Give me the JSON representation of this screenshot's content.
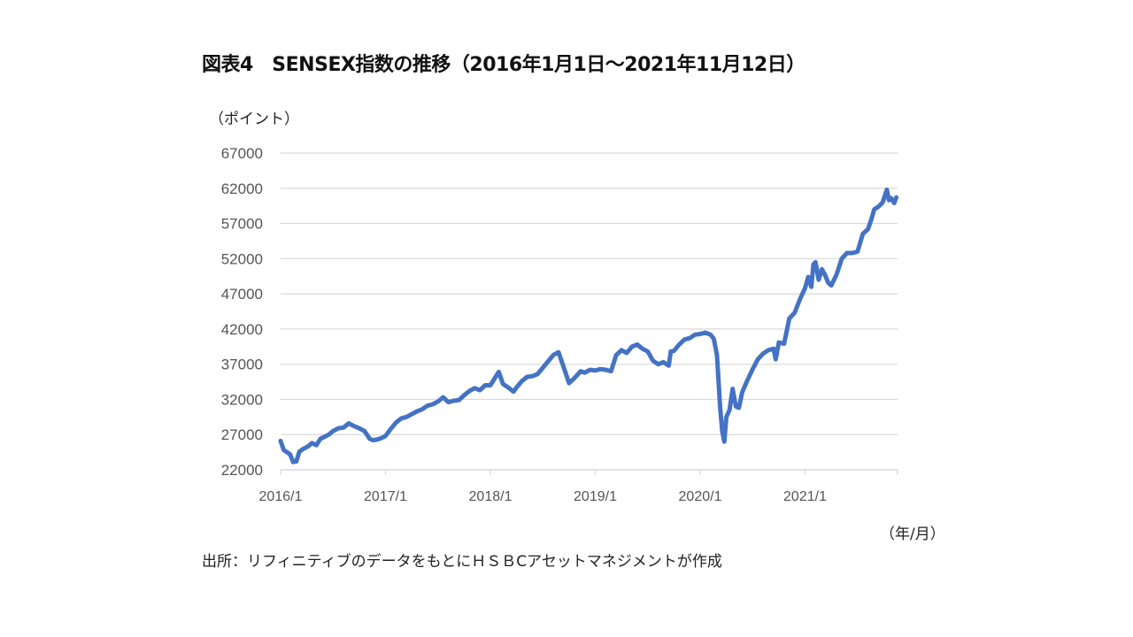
{
  "figure": {
    "title": "図表4　SENSEX指数の推移（2016年1月1日～2021年11月12日）",
    "y_unit": "（ポイント）",
    "x_unit": "（年/月）",
    "source": "出所：リフィニティブのデータをもとにＨＳＢCアセットマネジメントが作成"
  },
  "colors": {
    "line": "#4472C4",
    "grid": "#D9D9D9",
    "tick_text": "#595959"
  },
  "chart_data": {
    "type": "line",
    "title": "SENSEX指数の推移（2016年1月1日～2021年11月12日）",
    "xlabel": "（年/月）",
    "ylabel": "（ポイント）",
    "ylim": [
      22000,
      67000
    ],
    "yticks": [
      22000,
      27000,
      32000,
      37000,
      42000,
      47000,
      52000,
      57000,
      62000,
      67000
    ],
    "xticks": [
      "2016/1",
      "2017/1",
      "2018/1",
      "2019/1",
      "2020/1",
      "2021/1"
    ],
    "xlim": [
      2016.0,
      2021.87
    ],
    "grid": true,
    "legend": null,
    "series": [
      {
        "name": "SENSEX",
        "x": [
          2016.0,
          2016.03,
          2016.06,
          2016.09,
          2016.12,
          2016.15,
          2016.18,
          2016.22,
          2016.26,
          2016.3,
          2016.34,
          2016.38,
          2016.42,
          2016.46,
          2016.5,
          2016.55,
          2016.6,
          2016.65,
          2016.7,
          2016.75,
          2016.8,
          2016.85,
          2016.88,
          2016.92,
          2016.96,
          2017.0,
          2017.05,
          2017.1,
          2017.15,
          2017.2,
          2017.25,
          2017.3,
          2017.35,
          2017.4,
          2017.45,
          2017.5,
          2017.55,
          2017.6,
          2017.65,
          2017.7,
          2017.75,
          2017.8,
          2017.85,
          2017.9,
          2017.95,
          2018.0,
          2018.05,
          2018.08,
          2018.12,
          2018.17,
          2018.22,
          2018.25,
          2018.3,
          2018.35,
          2018.4,
          2018.45,
          2018.5,
          2018.55,
          2018.6,
          2018.65,
          2018.7,
          2018.75,
          2018.8,
          2018.83,
          2018.86,
          2018.9,
          2018.95,
          2019.0,
          2019.05,
          2019.1,
          2019.15,
          2019.2,
          2019.25,
          2019.3,
          2019.35,
          2019.4,
          2019.45,
          2019.5,
          2019.55,
          2019.6,
          2019.65,
          2019.7,
          2019.72,
          2019.75,
          2019.8,
          2019.85,
          2019.9,
          2019.95,
          2020.0,
          2020.05,
          2020.1,
          2020.13,
          2020.16,
          2020.19,
          2020.21,
          2020.23,
          2020.25,
          2020.28,
          2020.31,
          2020.34,
          2020.37,
          2020.4,
          2020.45,
          2020.5,
          2020.55,
          2020.6,
          2020.65,
          2020.7,
          2020.72,
          2020.75,
          2020.8,
          2020.85,
          2020.9,
          2020.95,
          2021.0,
          2021.03,
          2021.06,
          2021.08,
          2021.1,
          2021.13,
          2021.16,
          2021.19,
          2021.22,
          2021.25,
          2021.3,
          2021.35,
          2021.4,
          2021.45,
          2021.5,
          2021.55,
          2021.6,
          2021.63,
          2021.66,
          2021.7,
          2021.74,
          2021.78,
          2021.8,
          2021.82,
          2021.85,
          2021.87
        ],
        "values": [
          26100,
          24800,
          24500,
          24200,
          23100,
          23200,
          24600,
          25000,
          25300,
          25800,
          25500,
          26400,
          26700,
          27000,
          27500,
          27900,
          28000,
          28600,
          28200,
          27900,
          27500,
          26400,
          26200,
          26300,
          26500,
          26800,
          27800,
          28700,
          29300,
          29500,
          29900,
          30300,
          30600,
          31100,
          31300,
          31700,
          32300,
          31600,
          31800,
          31900,
          32600,
          33200,
          33600,
          33300,
          34000,
          34000,
          35200,
          35900,
          34200,
          33700,
          33100,
          33700,
          34600,
          35200,
          35300,
          35600,
          36500,
          37400,
          38300,
          38700,
          36500,
          34300,
          35000,
          35500,
          36000,
          35800,
          36200,
          36100,
          36300,
          36200,
          36000,
          38300,
          39000,
          38600,
          39500,
          39800,
          39200,
          38800,
          37500,
          37000,
          37300,
          36800,
          38800,
          38900,
          39800,
          40500,
          40700,
          41200,
          41300,
          41500,
          41200,
          40600,
          38300,
          31000,
          27500,
          26000,
          29500,
          30500,
          33500,
          31000,
          30800,
          33000,
          34700,
          36300,
          37700,
          38500,
          39000,
          39200,
          37700,
          40100,
          39900,
          43500,
          44300,
          46200,
          47800,
          49400,
          48000,
          51200,
          51500,
          49000,
          50500,
          49700,
          48600,
          48200,
          49700,
          52000,
          52800,
          52800,
          53000,
          55500,
          56200,
          57500,
          59000,
          59400,
          60000,
          61800,
          60300,
          60600,
          59900,
          60700
        ]
      }
    ]
  }
}
